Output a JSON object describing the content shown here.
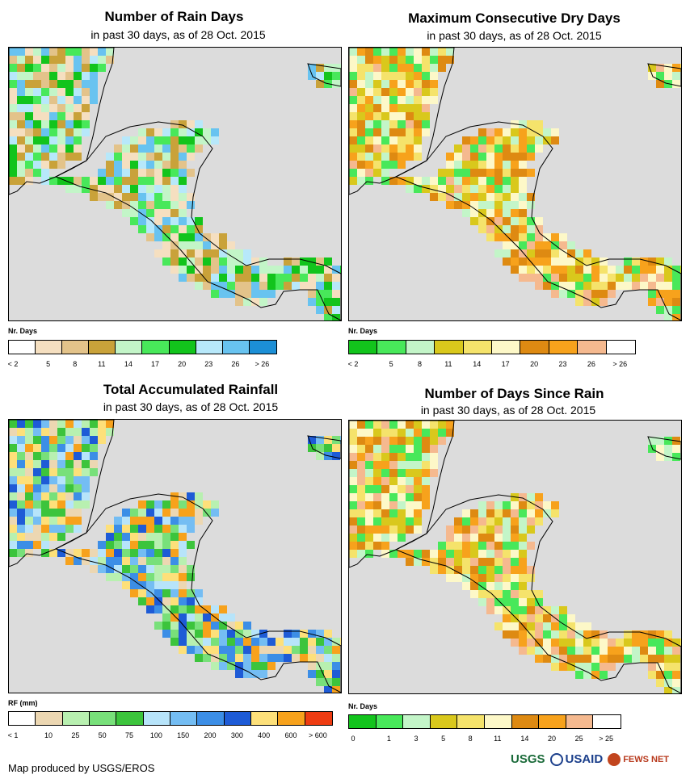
{
  "panels": [
    {
      "id": "rain-days",
      "title": "Number of Rain Days",
      "subtitle": "in past 30 days, as of 28 Oct. 2015",
      "legend_title": "Nr. Days",
      "legend_colors": [
        "#ffffff",
        "#f5dfc0",
        "#e3c38a",
        "#c9a23a",
        "#c3f5c8",
        "#48e85a",
        "#12c41c",
        "#b7e8fa",
        "#68c3f0",
        "#1c8fd6"
      ],
      "legend_labels": [
        "< 2",
        "5",
        "8",
        "11",
        "14",
        "17",
        "20",
        "23",
        "26",
        "> 26"
      ]
    },
    {
      "id": "max-dry-days",
      "title": "Maximum Consecutive Dry Days",
      "subtitle": "in past 30 days, as of 28 Oct. 2015",
      "legend_title": "Nr. Days",
      "legend_colors": [
        "#12c41c",
        "#48e85a",
        "#c3f5c8",
        "#d9c81c",
        "#f5e36b",
        "#fdf8c8",
        "#de8a12",
        "#f7a21c",
        "#f5b98f",
        "#ffffff"
      ],
      "legend_labels": [
        "< 2",
        "5",
        "8",
        "11",
        "14",
        "17",
        "20",
        "23",
        "26",
        "> 26"
      ]
    },
    {
      "id": "total-rainfall",
      "title": "Total Accumulated Rainfall",
      "subtitle": "in past 30 days, as of 28 Oct. 2015",
      "legend_title": "RF (mm)",
      "legend_colors": [
        "#ffffff",
        "#ecd7b2",
        "#b8f0b0",
        "#78e07a",
        "#3cc43c",
        "#b7e4fa",
        "#74bdf3",
        "#3c8ee6",
        "#1e5bd6",
        "#fde07a",
        "#f7a21c",
        "#ee3c12"
      ],
      "legend_labels": [
        "< 1",
        "10",
        "25",
        "50",
        "75",
        "100",
        "150",
        "200",
        "300",
        "400",
        "600",
        "> 600"
      ]
    },
    {
      "id": "days-since-rain",
      "title": "Number of Days Since Rain",
      "subtitle": "in past 30 days, as of 28 Oct. 2015",
      "legend_title": "Nr. Days",
      "legend_colors": [
        "#12c41c",
        "#48e85a",
        "#c3f5c8",
        "#d9c81c",
        "#f5e36b",
        "#fdf8c8",
        "#de8a12",
        "#f7a21c",
        "#f5b98f",
        "#ffffff"
      ],
      "legend_labels": [
        "0",
        "1",
        "3",
        "5",
        "8",
        "11",
        "14",
        "20",
        "25",
        "> 25"
      ]
    }
  ],
  "footer": {
    "credit": "Map produced by USGS/EROS",
    "logos": [
      "USGS",
      "USAID",
      "FEWS NET"
    ]
  },
  "map_colors": {
    "ocean": "#dcdcdc",
    "border": "#000000"
  }
}
